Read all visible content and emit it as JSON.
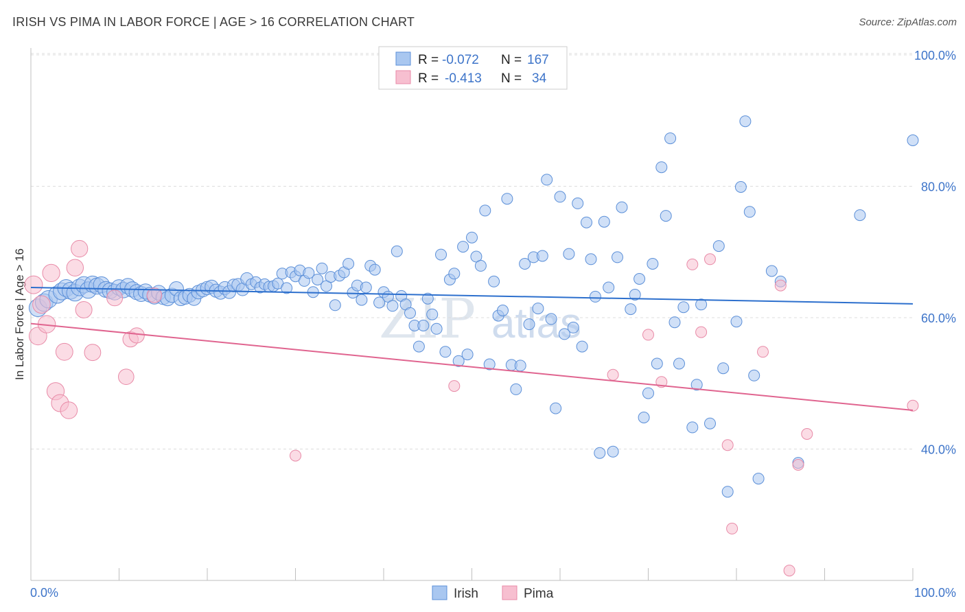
{
  "title": "IRISH VS PIMA IN LABOR FORCE | AGE > 16 CORRELATION CHART",
  "source": "Source: ZipAtlas.com",
  "watermark": {
    "zip": "ZIP",
    "atlas": "atlas"
  },
  "legend_top": {
    "rows": [
      {
        "r_label": "R =",
        "r_value": "-0.072",
        "n_label": "N =",
        "n_value": "167"
      },
      {
        "r_label": "R =",
        "r_value": "-0.413",
        "n_label": "N =",
        "n_value": "34"
      }
    ]
  },
  "legend_bottom": [
    "Irish",
    "Pima"
  ],
  "colors": {
    "irish_fill": "#a9c7f0",
    "irish_stroke": "#5b8fd8",
    "irish_line": "#2c6fcd",
    "pima_fill": "#f7bfd0",
    "pima_stroke": "#e88aa7",
    "pima_line": "#e0648f",
    "tick_text": "#3d74c9",
    "grid": "#dcdcdc"
  },
  "chart_data": {
    "type": "scatter",
    "title": "IRISH VS PIMA IN LABOR FORCE | AGE > 16 CORRELATION CHART",
    "xlabel": "",
    "ylabel": "In Labor Force | Age > 16",
    "xlim": [
      0,
      100
    ],
    "ylim": [
      20,
      100
    ],
    "x_tick_labels": [
      "0.0%",
      "100.0%"
    ],
    "y_tick_labels": [
      "40.0%",
      "60.0%",
      "80.0%",
      "100.0%"
    ],
    "y_ticks": [
      40,
      60,
      80,
      100
    ],
    "grid": true,
    "legend_position": "top-center",
    "series": [
      {
        "name": "Irish",
        "R": -0.072,
        "N": 167,
        "trend": {
          "x": [
            0,
            100
          ],
          "y": [
            64.6,
            62.1
          ]
        },
        "points": [
          [
            0.8,
            61.5
          ],
          [
            1.5,
            62.3
          ],
          [
            2,
            62.8
          ],
          [
            3,
            63.5
          ],
          [
            3.5,
            64
          ],
          [
            4,
            64.5
          ],
          [
            4.5,
            64.1
          ],
          [
            5,
            63.8
          ],
          [
            5.5,
            64.6
          ],
          [
            6,
            65
          ],
          [
            6.5,
            64.2
          ],
          [
            7,
            65.1
          ],
          [
            7.5,
            64.8
          ],
          [
            8,
            65
          ],
          [
            8.5,
            64.3
          ],
          [
            9,
            64.1
          ],
          [
            9.5,
            63.9
          ],
          [
            10,
            64.6
          ],
          [
            10.5,
            64.2
          ],
          [
            11,
            64.8
          ],
          [
            11.5,
            64.3
          ],
          [
            12,
            63.9
          ],
          [
            12.5,
            63.6
          ],
          [
            13,
            64
          ],
          [
            13.5,
            63.5
          ],
          [
            14,
            63.2
          ],
          [
            14.5,
            63.8
          ],
          [
            15,
            63.1
          ],
          [
            15.5,
            62.9
          ],
          [
            16,
            63.4
          ],
          [
            16.5,
            64.4
          ],
          [
            17,
            62.9
          ],
          [
            17.5,
            63.1
          ],
          [
            18,
            63.4
          ],
          [
            18.5,
            62.9
          ],
          [
            19,
            63.9
          ],
          [
            19.5,
            64.2
          ],
          [
            20,
            64.5
          ],
          [
            20.5,
            64.7
          ],
          [
            21,
            64.1
          ],
          [
            21.5,
            63.8
          ],
          [
            22,
            64.5
          ],
          [
            22.5,
            63.9
          ],
          [
            23,
            64.9
          ],
          [
            23.5,
            65
          ],
          [
            24,
            64.3
          ],
          [
            24.5,
            65.9
          ],
          [
            25,
            65.1
          ],
          [
            25.5,
            65.4
          ],
          [
            26,
            64.6
          ],
          [
            26.5,
            65.1
          ],
          [
            27,
            64.7
          ],
          [
            27.5,
            64.8
          ],
          [
            28,
            65.2
          ],
          [
            28.5,
            66.7
          ],
          [
            29,
            64.5
          ],
          [
            29.5,
            66.9
          ],
          [
            30,
            66.3
          ],
          [
            30.5,
            67.2
          ],
          [
            31,
            65.6
          ],
          [
            31.5,
            66.8
          ],
          [
            32,
            63.9
          ],
          [
            32.5,
            65.8
          ],
          [
            33,
            67.5
          ],
          [
            33.5,
            64.8
          ],
          [
            34,
            66.2
          ],
          [
            34.5,
            61.9
          ],
          [
            35,
            66.4
          ],
          [
            35.5,
            66.9
          ],
          [
            36,
            68.2
          ],
          [
            36.5,
            63.8
          ],
          [
            37,
            64.9
          ],
          [
            37.5,
            62.7
          ],
          [
            38,
            64.6
          ],
          [
            38.5,
            67.9
          ],
          [
            39,
            67.3
          ],
          [
            39.5,
            62.3
          ],
          [
            40,
            63.9
          ],
          [
            40.5,
            63.2
          ],
          [
            41,
            61.8
          ],
          [
            41.5,
            70.1
          ],
          [
            42,
            63.3
          ],
          [
            42.5,
            62
          ],
          [
            43,
            60.7
          ],
          [
            43.5,
            58.8
          ],
          [
            44,
            55.6
          ],
          [
            44.5,
            58.8
          ],
          [
            45,
            62.9
          ],
          [
            45.5,
            60.5
          ],
          [
            46,
            58.3
          ],
          [
            46.5,
            69.6
          ],
          [
            47,
            54.8
          ],
          [
            47.5,
            65.8
          ],
          [
            48,
            66.7
          ],
          [
            48.5,
            53.4
          ],
          [
            49,
            70.8
          ],
          [
            49.5,
            54.4
          ],
          [
            50,
            72.2
          ],
          [
            50.5,
            69.3
          ],
          [
            51,
            67.9
          ],
          [
            51.5,
            76.3
          ],
          [
            52,
            52.9
          ],
          [
            52.5,
            65.5
          ],
          [
            53,
            60.3
          ],
          [
            53.5,
            61.1
          ],
          [
            54,
            78.1
          ],
          [
            54.5,
            52.8
          ],
          [
            55,
            49.1
          ],
          [
            55.5,
            52.7
          ],
          [
            56,
            68.2
          ],
          [
            56.5,
            59
          ],
          [
            57,
            69.2
          ],
          [
            57.5,
            61.4
          ],
          [
            58,
            69.4
          ],
          [
            58.5,
            81
          ],
          [
            59,
            59.8
          ],
          [
            59.5,
            46.2
          ],
          [
            60,
            78.4
          ],
          [
            60.5,
            57.5
          ],
          [
            61,
            69.7
          ],
          [
            61.5,
            58.5
          ],
          [
            62,
            77.4
          ],
          [
            62.5,
            55.6
          ],
          [
            63,
            74.5
          ],
          [
            63.5,
            68.9
          ],
          [
            64,
            63.2
          ],
          [
            64.5,
            39.4
          ],
          [
            65,
            74.6
          ],
          [
            65.5,
            64.6
          ],
          [
            66,
            39.6
          ],
          [
            66.5,
            69.2
          ],
          [
            67,
            76.8
          ],
          [
            68,
            61.3
          ],
          [
            68.5,
            63.5
          ],
          [
            69,
            65.9
          ],
          [
            69.5,
            44.8
          ],
          [
            70,
            48.5
          ],
          [
            70.5,
            68.2
          ],
          [
            71,
            53
          ],
          [
            71.5,
            82.9
          ],
          [
            72,
            75.5
          ],
          [
            72.5,
            87.3
          ],
          [
            73,
            59.3
          ],
          [
            73.5,
            53
          ],
          [
            74,
            61.6
          ],
          [
            75,
            43.3
          ],
          [
            75.5,
            49.8
          ],
          [
            76,
            62
          ],
          [
            77,
            43.9
          ],
          [
            78,
            70.9
          ],
          [
            78.5,
            52.3
          ],
          [
            79,
            33.5
          ],
          [
            80,
            59.4
          ],
          [
            80.5,
            79.9
          ],
          [
            81,
            89.9
          ],
          [
            81.5,
            76.1
          ],
          [
            82,
            51.2
          ],
          [
            82.5,
            35.5
          ],
          [
            84,
            67.1
          ],
          [
            85,
            65.5
          ],
          [
            87,
            37.9
          ],
          [
            94,
            75.6
          ],
          [
            100,
            87
          ]
        ]
      },
      {
        "name": "Pima",
        "R": -0.413,
        "N": 34,
        "trend": {
          "x": [
            0,
            100
          ],
          "y": [
            59.1,
            45.9
          ]
        },
        "points": [
          [
            0.3,
            65
          ],
          [
            0.8,
            57.2
          ],
          [
            1.2,
            62
          ],
          [
            1.8,
            59
          ],
          [
            2.3,
            66.8
          ],
          [
            2.8,
            48.8
          ],
          [
            3.3,
            47
          ],
          [
            3.8,
            54.8
          ],
          [
            4.3,
            45.9
          ],
          [
            5,
            67.6
          ],
          [
            5.5,
            70.5
          ],
          [
            6,
            61.2
          ],
          [
            7,
            54.7
          ],
          [
            9.5,
            63
          ],
          [
            10.8,
            51
          ],
          [
            11.3,
            56.7
          ],
          [
            12,
            57.3
          ],
          [
            14,
            63.4
          ],
          [
            30,
            39
          ],
          [
            48,
            49.6
          ],
          [
            66,
            51.3
          ],
          [
            70,
            57.4
          ],
          [
            71.5,
            50.2
          ],
          [
            75,
            68.1
          ],
          [
            76,
            57.8
          ],
          [
            77,
            68.9
          ],
          [
            79,
            40.6
          ],
          [
            79.5,
            27.9
          ],
          [
            83,
            54.8
          ],
          [
            85,
            64.9
          ],
          [
            86,
            21.5
          ],
          [
            87,
            37.6
          ],
          [
            88,
            42.3
          ],
          [
            100,
            46.6
          ]
        ]
      }
    ]
  }
}
